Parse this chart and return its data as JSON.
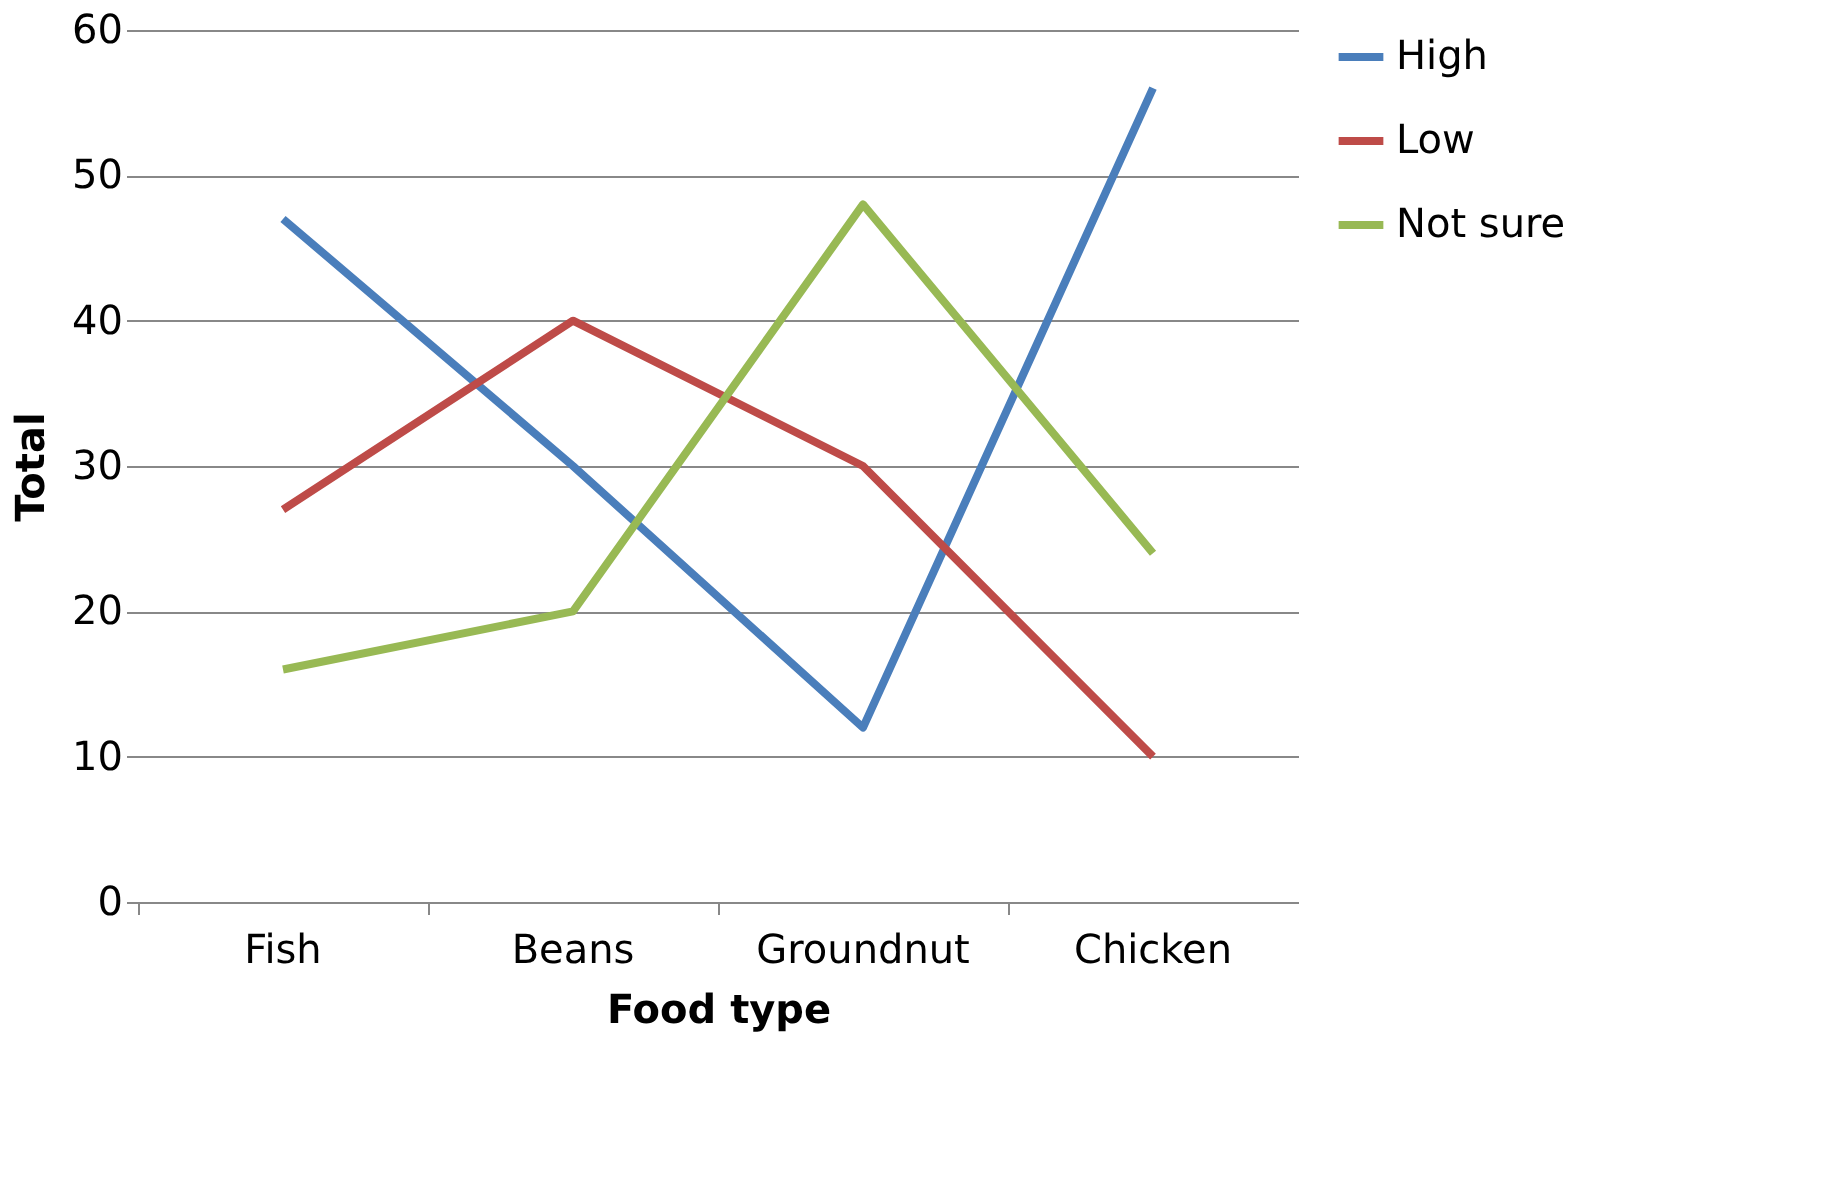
{
  "chart_data": {
    "type": "line",
    "xlabel": "Food type",
    "ylabel": "Total",
    "categories": [
      "Fish",
      "Beans",
      "Groundnut",
      "Chicken"
    ],
    "series": [
      {
        "name": "High",
        "color": "#4a7ebb",
        "values": [
          47,
          30,
          12,
          56
        ]
      },
      {
        "name": "Low",
        "color": "#be4b48",
        "values": [
          27,
          40,
          30,
          10
        ]
      },
      {
        "name": "Not sure",
        "color": "#98b954",
        "values": [
          16,
          20,
          48,
          24
        ]
      }
    ],
    "ylim": [
      0,
      60
    ],
    "yticks": [
      0,
      10,
      20,
      30,
      40,
      50,
      60
    ],
    "grid": "y",
    "legend": "right",
    "marker": "none",
    "line_style": "solid"
  }
}
